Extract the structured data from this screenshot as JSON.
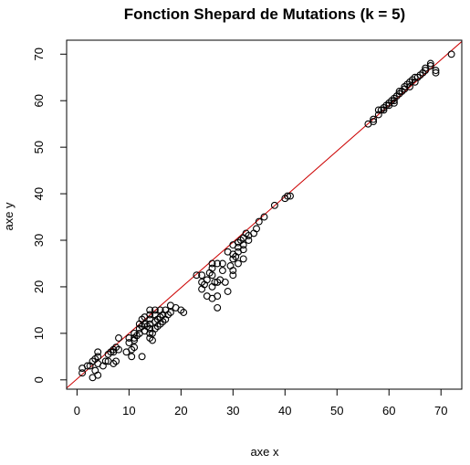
{
  "chart_data": {
    "type": "scatter",
    "title": "Fonction Shepard de Mutations (k = 5)",
    "xlabel": "axe x",
    "ylabel": "axe y",
    "xlim": [
      -2,
      74
    ],
    "ylim": [
      -2,
      73
    ],
    "xticks": [
      0,
      10,
      20,
      30,
      40,
      50,
      60,
      70
    ],
    "yticks": [
      0,
      10,
      20,
      30,
      40,
      50,
      60,
      70
    ],
    "grid": false,
    "legend": "none",
    "point_color": "#000000",
    "line_color": "#cc0000",
    "reference_line": {
      "intercept": 0.2,
      "slope": 0.98
    },
    "points": [
      [
        1,
        1.5
      ],
      [
        1,
        2.5
      ],
      [
        2,
        3
      ],
      [
        2.5,
        3
      ],
      [
        3,
        0.5
      ],
      [
        3,
        4
      ],
      [
        3.5,
        2
      ],
      [
        3.5,
        4.5
      ],
      [
        4,
        1
      ],
      [
        4,
        3.5
      ],
      [
        4,
        5
      ],
      [
        4,
        6
      ],
      [
        5,
        3
      ],
      [
        5.5,
        4
      ],
      [
        6,
        4
      ],
      [
        6,
        5.5
      ],
      [
        6.5,
        6
      ],
      [
        7,
        3.5
      ],
      [
        7,
        6
      ],
      [
        7,
        6.5
      ],
      [
        7.5,
        4
      ],
      [
        7.5,
        7
      ],
      [
        8,
        6.5
      ],
      [
        8,
        9
      ],
      [
        9.5,
        6
      ],
      [
        10,
        8
      ],
      [
        10,
        9
      ],
      [
        10.5,
        5
      ],
      [
        10.5,
        6.5
      ],
      [
        11,
        7
      ],
      [
        11,
        8.5
      ],
      [
        11,
        9
      ],
      [
        11,
        10
      ],
      [
        11.5,
        9.5
      ],
      [
        12,
        10
      ],
      [
        12,
        11
      ],
      [
        12,
        12
      ],
      [
        12.5,
        5
      ],
      [
        12.5,
        11.5
      ],
      [
        12.5,
        13
      ],
      [
        13,
        10.5
      ],
      [
        13,
        12
      ],
      [
        13,
        13.5
      ],
      [
        13.5,
        11.5
      ],
      [
        14,
        9
      ],
      [
        14,
        10
      ],
      [
        14,
        11
      ],
      [
        14,
        12
      ],
      [
        14,
        13
      ],
      [
        14,
        14
      ],
      [
        14,
        15
      ],
      [
        14.5,
        8.5
      ],
      [
        14.5,
        10
      ],
      [
        15,
        11
      ],
      [
        15,
        12.5
      ],
      [
        15,
        14
      ],
      [
        15,
        15
      ],
      [
        15.5,
        11.5
      ],
      [
        15.5,
        13
      ],
      [
        16,
        12
      ],
      [
        16,
        13.5
      ],
      [
        16,
        15
      ],
      [
        16.5,
        12.5
      ],
      [
        16.5,
        14
      ],
      [
        17,
        13
      ],
      [
        17,
        15
      ],
      [
        17.5,
        14
      ],
      [
        18,
        14.5
      ],
      [
        18,
        16
      ],
      [
        19,
        15.5
      ],
      [
        20,
        15
      ],
      [
        20.5,
        14.5
      ],
      [
        23,
        22.5
      ],
      [
        24,
        19.5
      ],
      [
        24,
        21
      ],
      [
        24,
        22.5
      ],
      [
        24.5,
        20.5
      ],
      [
        25,
        18
      ],
      [
        25,
        21.5
      ],
      [
        25.5,
        23
      ],
      [
        26,
        17.5
      ],
      [
        26,
        20
      ],
      [
        26,
        22.5
      ],
      [
        26,
        24
      ],
      [
        26,
        25
      ],
      [
        26.5,
        21
      ],
      [
        27,
        18
      ],
      [
        27,
        15.5
      ],
      [
        27,
        21
      ],
      [
        27,
        25
      ],
      [
        27.5,
        21.5
      ],
      [
        28,
        23.5
      ],
      [
        28,
        25
      ],
      [
        28.5,
        21
      ],
      [
        29,
        27.5
      ],
      [
        29,
        19
      ],
      [
        29.5,
        24.5
      ],
      [
        30,
        22.5
      ],
      [
        30,
        23.5
      ],
      [
        30,
        26
      ],
      [
        30,
        27
      ],
      [
        30,
        29
      ],
      [
        30.5,
        26.5
      ],
      [
        31,
        25
      ],
      [
        31,
        27.5
      ],
      [
        31,
        28.5
      ],
      [
        31,
        29.5
      ],
      [
        31.5,
        30
      ],
      [
        32,
        26
      ],
      [
        32,
        28
      ],
      [
        32,
        29
      ],
      [
        32,
        30.5
      ],
      [
        32.5,
        31.5
      ],
      [
        33,
        30
      ],
      [
        33,
        31
      ],
      [
        34,
        31.5
      ],
      [
        34.5,
        32.5
      ],
      [
        35,
        34
      ],
      [
        36,
        35
      ],
      [
        38,
        37.5
      ],
      [
        40,
        39
      ],
      [
        40.5,
        39.5
      ],
      [
        41,
        39.5
      ],
      [
        56,
        55
      ],
      [
        57,
        55.5
      ],
      [
        57,
        56
      ],
      [
        58,
        57
      ],
      [
        58,
        58
      ],
      [
        58.5,
        58
      ],
      [
        59,
        58
      ],
      [
        59,
        58.5
      ],
      [
        59.5,
        59
      ],
      [
        60,
        59
      ],
      [
        60,
        59.5
      ],
      [
        60.5,
        60
      ],
      [
        61,
        59.5
      ],
      [
        61,
        60
      ],
      [
        61,
        60.5
      ],
      [
        61.5,
        61
      ],
      [
        62,
        61.5
      ],
      [
        62,
        62
      ],
      [
        62.5,
        62
      ],
      [
        63,
        62.5
      ],
      [
        63,
        63
      ],
      [
        63.5,
        63.5
      ],
      [
        64,
        63
      ],
      [
        64,
        64
      ],
      [
        64.5,
        64.5
      ],
      [
        65,
        64
      ],
      [
        65,
        65
      ],
      [
        65.5,
        65
      ],
      [
        66,
        65.5
      ],
      [
        66.5,
        66
      ],
      [
        67,
        66.5
      ],
      [
        67,
        67
      ],
      [
        68,
        67.5
      ],
      [
        68,
        68
      ],
      [
        69,
        66
      ],
      [
        69,
        66.5
      ],
      [
        72,
        70
      ]
    ]
  }
}
